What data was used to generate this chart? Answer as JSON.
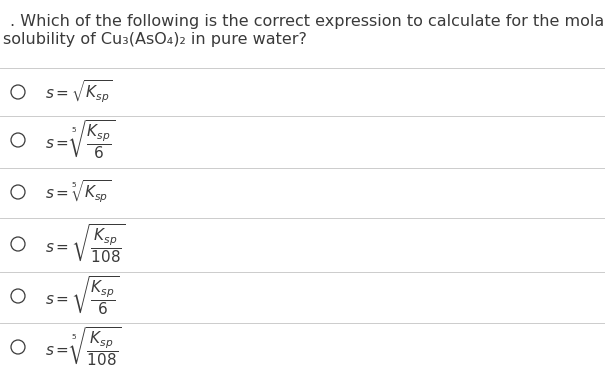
{
  "background_color": "#ffffff",
  "title_line1": ". Which of the following is the correct expression to calculate for the molar",
  "title_line2": "solubility of Cu₃(AsO₄)₂ in pure water?",
  "font_size_title": 11.5,
  "font_size_options": 11,
  "text_color": "#3a3a3a",
  "line_color": "#cccccc",
  "circle_color": "#3a3a3a"
}
